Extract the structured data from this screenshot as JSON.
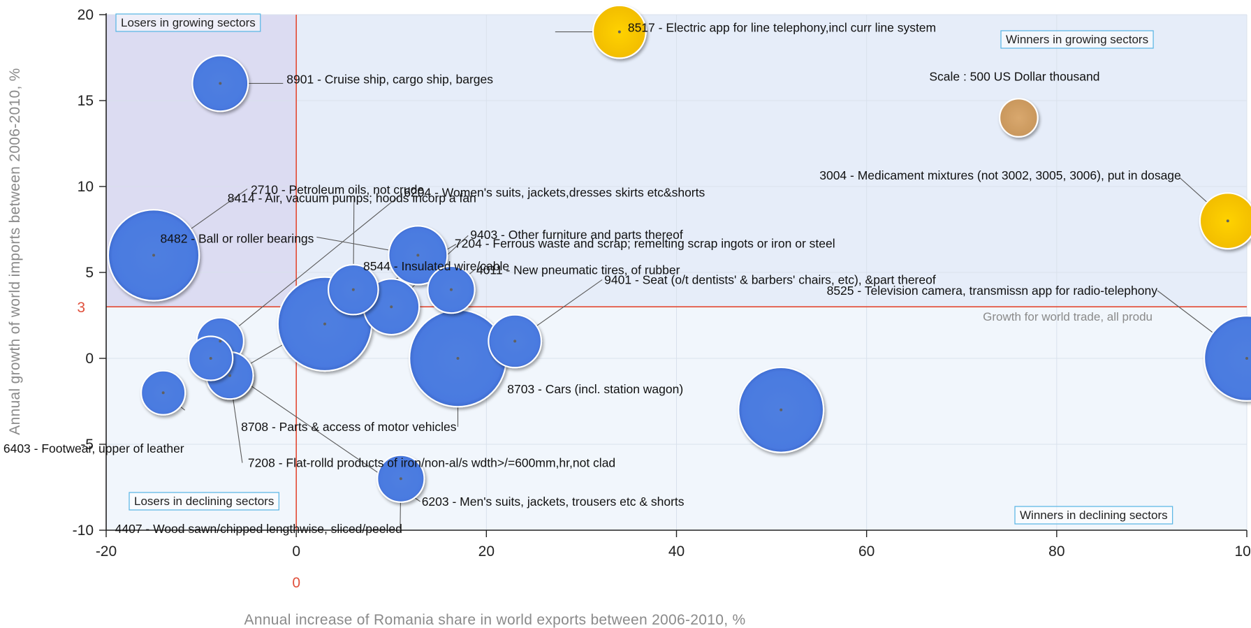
{
  "chart_data": {
    "type": "scatter",
    "xlabel": "Annual increase of Romania share in world exports between 2006-2010, %",
    "ylabel": "Annual growth of world imports between 2006-2010, %",
    "xlim": [
      -20,
      100
    ],
    "ylim": [
      -10,
      20
    ],
    "x_ticks": [
      "-20",
      "0",
      "20",
      "40",
      "60",
      "80",
      "100"
    ],
    "y_ticks": [
      "20",
      "15",
      "10",
      "5",
      "0",
      "-5",
      "-10"
    ],
    "grid": true,
    "reference_lines": {
      "y": {
        "value": 3,
        "label": "3",
        "text": "Growth for world trade, all produ"
      },
      "x": {
        "value": 0,
        "label": "0"
      }
    },
    "quadrant_labels": {
      "top_left": "Losers in growing sectors",
      "top_right": "Winners in growing sectors",
      "bottom_left": "Losers in declining sectors",
      "bottom_right": "Winners in declining sectors"
    },
    "scale_note": "Scale : 500 US Dollar thousand",
    "colors": {
      "bubble": "#4f7fe0",
      "highlight": "#f7c600",
      "scale": "#d4a066",
      "reference": "#e34a33",
      "top_left_quadrant": "#dcdcf2",
      "growing": "#e6edf9",
      "declining": "#f1f6fc"
    },
    "bubbles": [
      {
        "code": "8517",
        "label": "8517 - Electric app for line telephony,incl curr line system",
        "x": 34,
        "y": 19,
        "size": 0.9,
        "highlight": true
      },
      {
        "code": "8901",
        "label": "8901 - Cruise ship, cargo ship, barges",
        "x": -8,
        "y": 16,
        "size": 0.95
      },
      {
        "code": "3004",
        "label": "3004 - Medicament mixtures (not 3002, 3005, 3006), put in dosage",
        "x": 98,
        "y": 8,
        "size": 0.95,
        "highlight": true
      },
      {
        "code": "2710",
        "label": "2710 - Petroleum oils, not crude",
        "x": -15,
        "y": 6,
        "size": 1.55
      },
      {
        "code": "8482",
        "label": "8482 - Ball or roller bearings",
        "x": 12.8,
        "y": 6,
        "size": 1.0
      },
      {
        "code": "8544",
        "label": "8544 - Insulated wire/cable",
        "x": 3,
        "y": 2,
        "size": 1.6
      },
      {
        "code": "8414",
        "label": "8414 - Air, vacuum pumps; hoods incorp a fan",
        "x": 6,
        "y": 4,
        "size": 0.85
      },
      {
        "code": "9403",
        "label": "9403 - Other furniture and parts thereof",
        "x": 10,
        "y": 3,
        "size": 0.95
      },
      {
        "code": "4011",
        "label": "4011 - New pneumatic tires, of rubber",
        "x": 16.3,
        "y": 4,
        "size": 0.8
      },
      {
        "code": "8708",
        "label": "8708 - Parts & access of motor vehicles",
        "x": 17,
        "y": 0,
        "size": 1.65
      },
      {
        "code": "9401",
        "label": "9401 - Seat (o/t dentists' & barbers' chairs, etc), &part thereof",
        "x": 23,
        "y": 1,
        "size": 0.9
      },
      {
        "code": "6204",
        "label": "6204 - Women's suits, jackets,dresses skirts etc&shorts",
        "x": -8,
        "y": 1,
        "size": 0.8
      },
      {
        "code": "7204",
        "label": "7204 - Ferrous waste and scrap; remelting scrap ingots or iron or steel",
        "x": -7,
        "y": -1,
        "size": 0.8
      },
      {
        "code": "6203",
        "label": "6203 - Men's suits, jackets, trousers etc & shorts",
        "x": -9,
        "y": 0,
        "size": 0.75
      },
      {
        "code": "6403",
        "label": "6403 - Footwear, upper of leather",
        "x": -14,
        "y": -2,
        "size": 0.75
      },
      {
        "code": "7208",
        "label": "7208 - Flat-rolld products of iron/non-al/s wdth>/=600mm,hr,not clad",
        "x": -7,
        "y": -1,
        "size": 0.8
      },
      {
        "code": "4407",
        "label": "4407 - Wood sawn/chipped lengthwise, sliced/peeled",
        "x": 11,
        "y": -7,
        "size": 0.8
      },
      {
        "code": "8703",
        "label": "8703 - Cars (incl. station wagon)",
        "x": 51,
        "y": -3,
        "size": 1.45
      },
      {
        "code": "8525",
        "label": "8525 - Television camera, transmissn app for radio-telephony",
        "x": 100,
        "y": 0,
        "size": 1.45
      }
    ],
    "scale_bubble": {
      "x": 76,
      "y": 14,
      "size": 0.65
    }
  }
}
